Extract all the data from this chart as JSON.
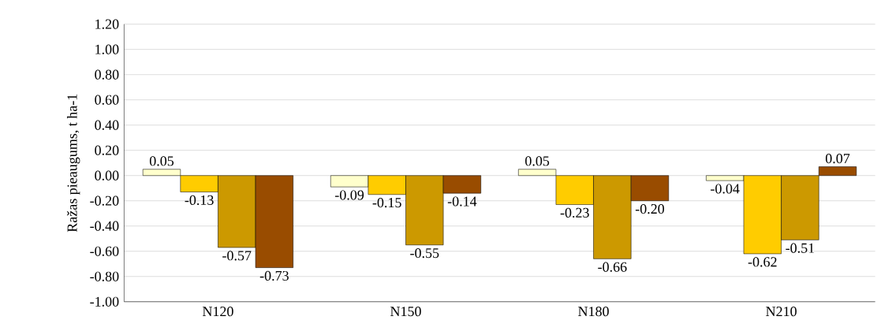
{
  "chart_data": {
    "type": "bar",
    "ylabel": "Ražas pieaugums, t ha-1",
    "categories": [
      "N120",
      "N150",
      "N180",
      "N210"
    ],
    "series": [
      {
        "color": "#ffffcc",
        "values": [
          0.05,
          -0.09,
          0.05,
          -0.04
        ],
        "value_labels": [
          "0.05",
          "-0.09",
          "0.05",
          "-0.04"
        ]
      },
      {
        "color": "#ffcc00",
        "values": [
          -0.13,
          -0.15,
          -0.23,
          -0.62
        ],
        "value_labels": [
          "-0.13",
          "-0.15",
          "-0.23",
          "-0.62"
        ]
      },
      {
        "color": "#cc9900",
        "values": [
          -0.57,
          -0.55,
          -0.66,
          -0.51
        ],
        "value_labels": [
          "-0.57",
          "-0.55",
          "-0.66",
          "-0.51"
        ]
      },
      {
        "color": "#994c00",
        "values": [
          -0.73,
          -0.14,
          -0.2,
          0.07
        ],
        "value_labels": [
          "-0.73",
          "-0.14",
          "-0.20",
          "0.07"
        ]
      }
    ],
    "ylim": [
      -1.0,
      1.2
    ],
    "yticks": [
      {
        "value": -1.0,
        "label": "-1.00"
      },
      {
        "value": -0.8,
        "label": "-0.80"
      },
      {
        "value": -0.6,
        "label": "-0.60"
      },
      {
        "value": -0.4,
        "label": "-0.40"
      },
      {
        "value": -0.2,
        "label": "-0.20"
      },
      {
        "value": 0.0,
        "label": "0.00"
      },
      {
        "value": 0.2,
        "label": "0.20"
      },
      {
        "value": 0.4,
        "label": "0.40"
      },
      {
        "value": 0.6,
        "label": "0.60"
      },
      {
        "value": 0.8,
        "label": "0.80"
      },
      {
        "value": 1.0,
        "label": "1.00"
      },
      {
        "value": 1.2,
        "label": "1.20"
      }
    ],
    "grid": "y"
  }
}
